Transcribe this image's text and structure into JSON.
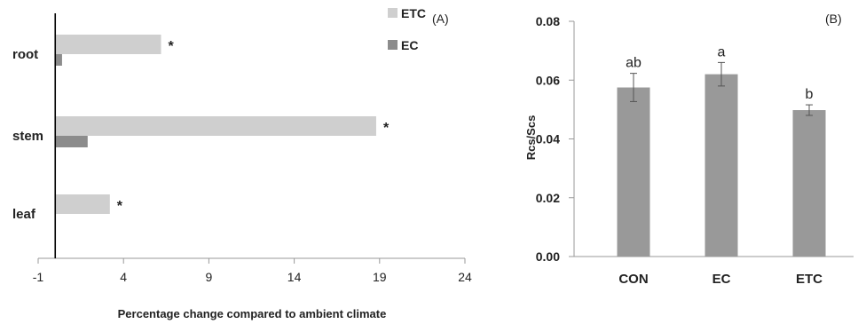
{
  "chart_data": [
    {
      "type": "bar",
      "orientation": "horizontal",
      "panel_label": "(A)",
      "xlabel": "Percentage change compared to ambient climate",
      "ylabel": "",
      "xlim": [
        -1,
        24
      ],
      "xticks": [
        "-1",
        "4",
        "9",
        "14",
        "19",
        "24"
      ],
      "categories": [
        "root",
        "stem",
        "leaf"
      ],
      "series": [
        {
          "name": "ETC",
          "color": "#cfcfcf",
          "values": [
            6.2,
            18.8,
            3.2
          ]
        },
        {
          "name": "EC",
          "color": "#8c8c8c",
          "values": [
            0.4,
            1.9,
            0
          ]
        }
      ],
      "annotations": [
        {
          "category": "root",
          "series": "ETC",
          "text": "*"
        },
        {
          "category": "stem",
          "series": "ETC",
          "text": "*"
        },
        {
          "category": "leaf",
          "series": "ETC",
          "text": "*"
        }
      ],
      "legend_position": "top-right",
      "grid": false
    },
    {
      "type": "bar",
      "panel_label": "(B)",
      "xlabel": "",
      "ylabel": "Rcs/Scs",
      "ylim": [
        0,
        0.08
      ],
      "yticks": [
        "0.00",
        "0.02",
        "0.04",
        "0.06",
        "0.08"
      ],
      "categories": [
        "CON",
        "EC",
        "ETC"
      ],
      "values": [
        0.0575,
        0.062,
        0.0498
      ],
      "error": [
        0.0048,
        0.004,
        0.0018
      ],
      "significance_letters": [
        "ab",
        "a",
        "b"
      ],
      "color": "#999999",
      "grid": false
    }
  ]
}
